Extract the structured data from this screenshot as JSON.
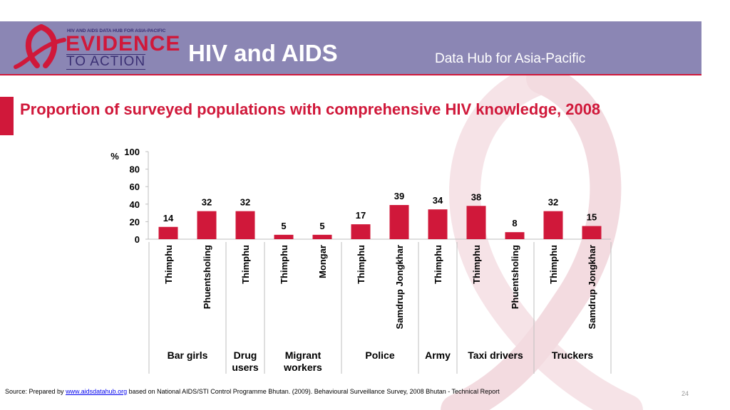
{
  "header": {
    "logo": {
      "top_text": "HIV AND AIDS DATA HUB FOR ASIA-PACIFIC",
      "main_text": "EVIDENCE",
      "bottom_text": "TO ACTION"
    },
    "title": "HIV and AIDS",
    "subtitle": "Data Hub for Asia-Pacific"
  },
  "slide_title": "Proportion of surveyed populations with comprehensive HIV knowledge, 2008",
  "chart_data": {
    "type": "bar",
    "title": "Proportion of surveyed populations with comprehensive HIV knowledge, 2008",
    "ylabel": "%",
    "ylim": [
      0,
      100
    ],
    "yticks": [
      0,
      20,
      40,
      60,
      80,
      100
    ],
    "grid": false,
    "legend": "none",
    "bar_color": "#d0183a",
    "categories": [
      "Thimphu",
      "Phuentsholing",
      "Thimphu",
      "Thimphu",
      "Mongar",
      "Thimphu",
      "Samdrup Jongkhar",
      "Thimphu",
      "Thimphu",
      "Phuentsholing",
      "Thimphu",
      "Samdrup Jongkhar"
    ],
    "values": [
      14,
      32,
      32,
      5,
      5,
      17,
      39,
      34,
      38,
      8,
      32,
      15
    ],
    "groups": [
      {
        "label": [
          "Bar girls"
        ],
        "start": 0,
        "end": 1
      },
      {
        "label": [
          "Drug",
          "users"
        ],
        "start": 2,
        "end": 2
      },
      {
        "label": [
          "Migrant",
          "workers"
        ],
        "start": 3,
        "end": 4
      },
      {
        "label": [
          "Police"
        ],
        "start": 5,
        "end": 6
      },
      {
        "label": [
          "Army"
        ],
        "start": 7,
        "end": 7
      },
      {
        "label": [
          "Taxi drivers"
        ],
        "start": 8,
        "end": 9
      },
      {
        "label": [
          "Truckers"
        ],
        "start": 10,
        "end": 11
      }
    ]
  },
  "source": {
    "prefix": "Source: Prepared by ",
    "link": "www.aidsdatahub.org",
    "suffix": " based on National AIDS/STI Control Programme Bhutan. (2009). Behavioural Surveillance Survey, 2008 Bhutan - Technical Report"
  },
  "page_number": "24"
}
